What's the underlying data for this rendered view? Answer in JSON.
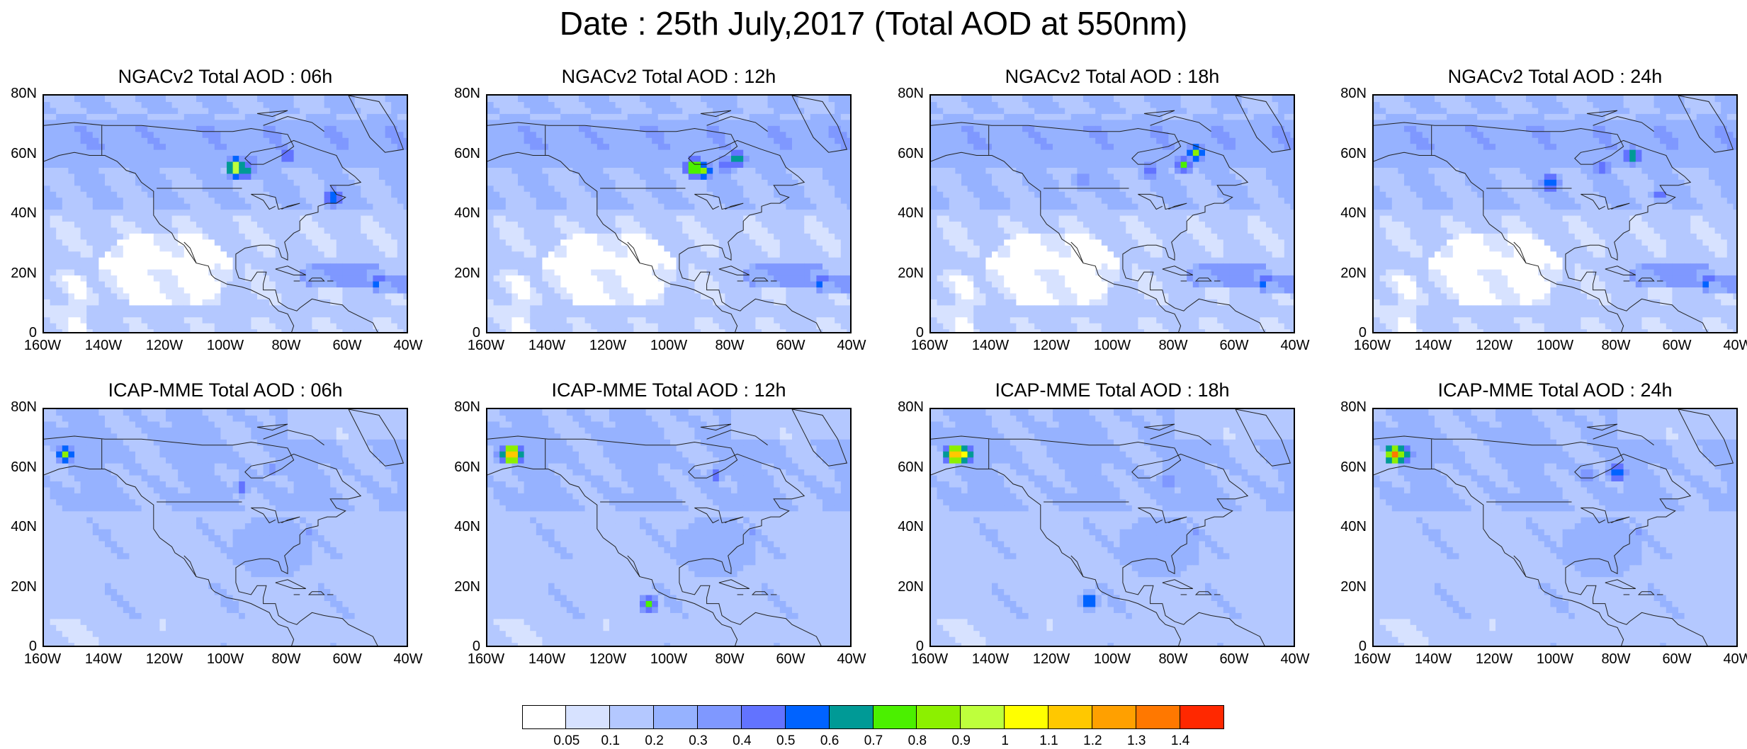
{
  "title": "Date : 25th July,2017 (Total AOD at 550nm)",
  "panels": [
    {
      "title": "NGACv2 Total AOD : 06h",
      "model": "ngac",
      "hotspots": [
        {
          "lon": -97,
          "lat": 56,
          "v": 1.1
        },
        {
          "lon": -94,
          "lat": 55,
          "v": 0.8
        },
        {
          "lon": -80,
          "lat": 60,
          "v": 0.6
        },
        {
          "lon": -65,
          "lat": 46,
          "v": 0.7
        },
        {
          "lon": -92,
          "lat": 58,
          "v": 0.5
        }
      ]
    },
    {
      "title": "NGACv2 Total AOD : 12h",
      "model": "ngac",
      "hotspots": [
        {
          "lon": -92,
          "lat": 56,
          "v": 1.0
        },
        {
          "lon": -89,
          "lat": 55,
          "v": 0.8
        },
        {
          "lon": -78,
          "lat": 59,
          "v": 0.8
        },
        {
          "lon": -82,
          "lat": 57,
          "v": 0.6
        }
      ]
    },
    {
      "title": "NGACv2 Total AOD : 18h",
      "model": "ngac",
      "hotspots": [
        {
          "lon": -73,
          "lat": 61,
          "v": 0.8
        },
        {
          "lon": -77,
          "lat": 57,
          "v": 0.7
        },
        {
          "lon": -88,
          "lat": 55,
          "v": 0.6
        },
        {
          "lon": -110,
          "lat": 52,
          "v": 0.5
        }
      ]
    },
    {
      "title": "NGACv2 Total AOD : 24h",
      "model": "ngac",
      "hotspots": [
        {
          "lon": -102,
          "lat": 51,
          "v": 0.7
        },
        {
          "lon": -75,
          "lat": 60,
          "v": 0.8
        },
        {
          "lon": -85,
          "lat": 56,
          "v": 0.6
        },
        {
          "lon": -66,
          "lat": 47,
          "v": 0.5
        }
      ]
    },
    {
      "title": "ICAP-MME Total AOD : 06h",
      "model": "icap",
      "hotspots": [
        {
          "lon": -153,
          "lat": 65,
          "v": 0.8
        },
        {
          "lon": -95,
          "lat": 54,
          "v": 0.5
        },
        {
          "lon": -85,
          "lat": 60,
          "v": 0.4
        }
      ]
    },
    {
      "title": "ICAP-MME Total AOD : 12h",
      "model": "icap",
      "hotspots": [
        {
          "lon": -152,
          "lat": 65,
          "v": 1.4
        },
        {
          "lon": -155,
          "lat": 65,
          "v": 0.6
        },
        {
          "lon": -107,
          "lat": 15,
          "v": 0.7
        },
        {
          "lon": -85,
          "lat": 58,
          "v": 0.5
        }
      ]
    },
    {
      "title": "ICAP-MME Total AOD : 18h",
      "model": "icap",
      "hotspots": [
        {
          "lon": -152,
          "lat": 65,
          "v": 1.4
        },
        {
          "lon": -149,
          "lat": 65,
          "v": 1.0
        },
        {
          "lon": -108,
          "lat": 16,
          "v": 0.7
        },
        {
          "lon": -82,
          "lat": 56,
          "v": 0.5
        }
      ]
    },
    {
      "title": "ICAP-MME Total AOD : 24h",
      "model": "icap",
      "hotspots": [
        {
          "lon": -153,
          "lat": 65,
          "v": 1.3
        },
        {
          "lon": -150,
          "lat": 65,
          "v": 0.8
        },
        {
          "lon": -80,
          "lat": 59,
          "v": 0.7
        },
        {
          "lon": -90,
          "lat": 58,
          "v": 0.5
        }
      ]
    }
  ],
  "map": {
    "lon_range": [
      -160,
      -40
    ],
    "lat_range": [
      0,
      80
    ],
    "lon_ticks": [
      "160W",
      "140W",
      "120W",
      "100W",
      "80W",
      "60W",
      "40W"
    ],
    "lat_ticks": [
      "0",
      "20N",
      "40N",
      "60N",
      "80N"
    ]
  },
  "colorbar": {
    "colors": [
      "#ffffff",
      "#d7e2ff",
      "#b4c8ff",
      "#96b2ff",
      "#7f98ff",
      "#6273ff",
      "#0063ff",
      "#009a96",
      "#4bf000",
      "#8cf000",
      "#beff3c",
      "#ffff00",
      "#ffc800",
      "#ffa000",
      "#ff7800",
      "#ff2800"
    ],
    "labels": [
      "0.05",
      "0.1",
      "0.2",
      "0.3",
      "0.4",
      "0.5",
      "0.6",
      "0.7",
      "0.8",
      "0.9",
      "1",
      "1.1",
      "1.2",
      "1.3",
      "1.4"
    ]
  }
}
